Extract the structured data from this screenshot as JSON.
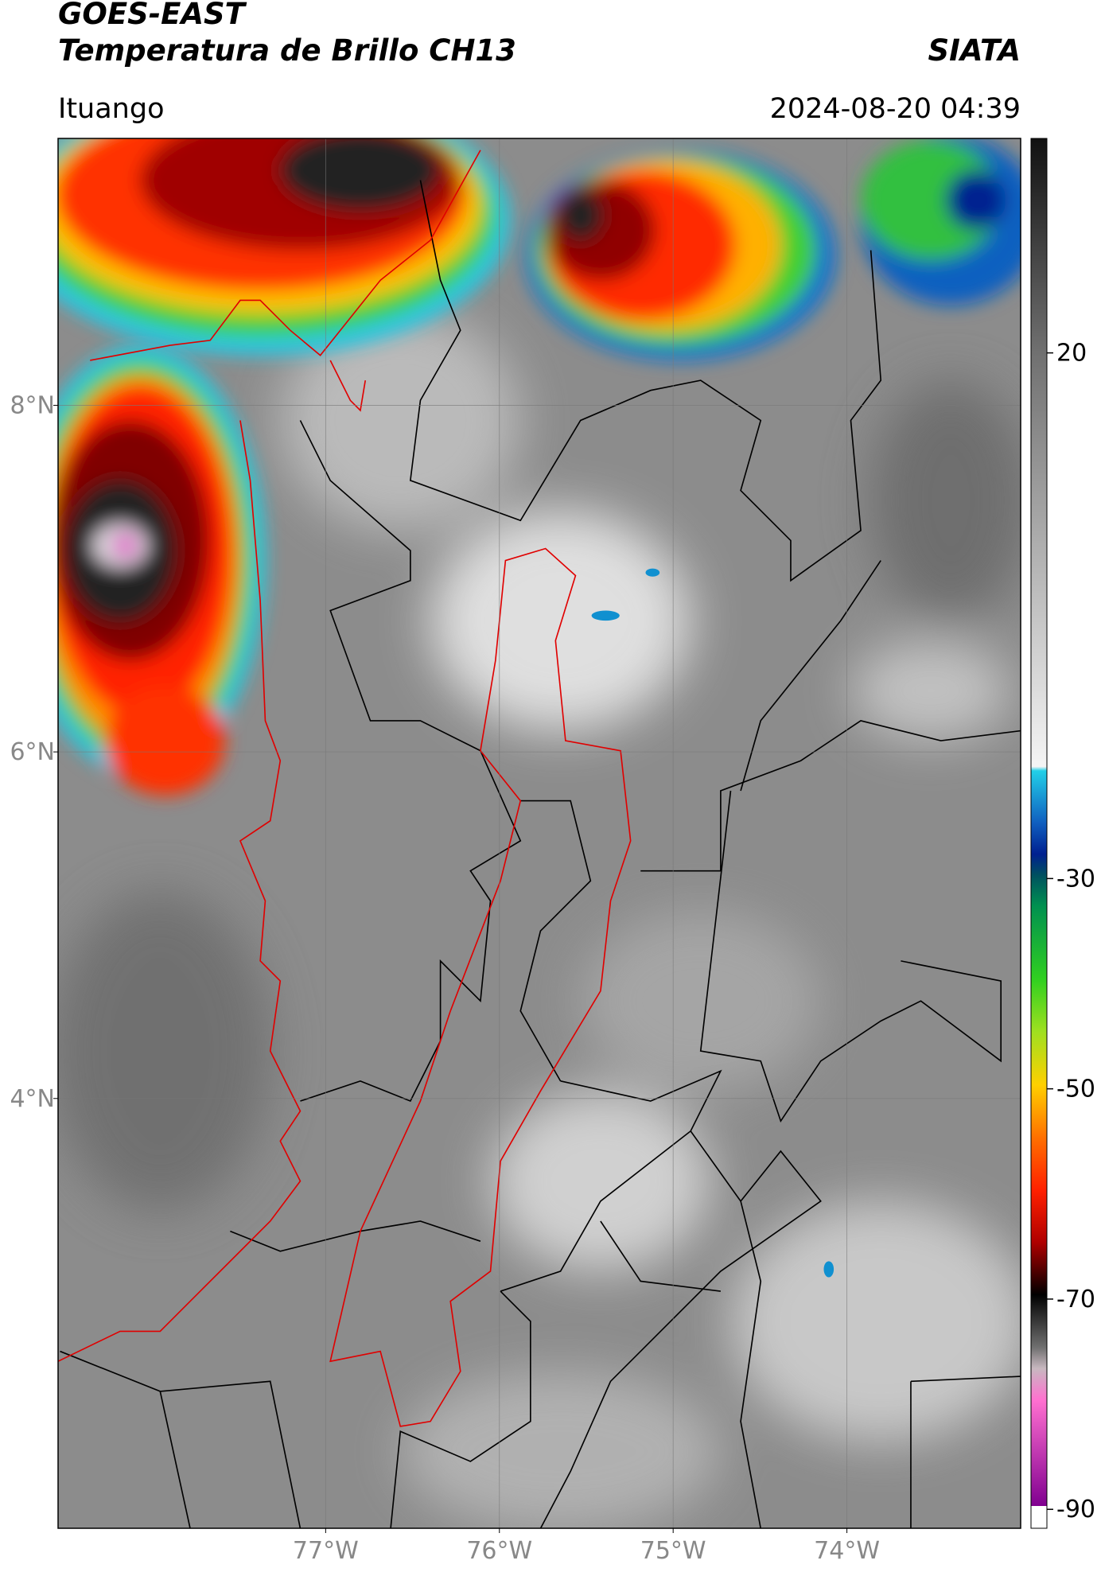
{
  "header": {
    "satellite": "GOES-EAST",
    "product": "Temperatura de Brillo CH13",
    "agency": "SIATA",
    "region": "Ituango",
    "timestamp": "2024-08-20 04:39"
  },
  "map": {
    "xlim": [
      -78.54,
      -73.0
    ],
    "ylim": [
      1.52,
      9.54
    ],
    "xticks": [
      {
        "value": -77,
        "label": "77°W"
      },
      {
        "value": -76,
        "label": "76°W"
      },
      {
        "value": -75,
        "label": "75°W"
      },
      {
        "value": -74,
        "label": "74°W"
      }
    ],
    "yticks": [
      {
        "value": 8,
        "label": "8°N"
      },
      {
        "value": 6,
        "label": "6°N"
      },
      {
        "value": 4,
        "label": "4°N"
      }
    ],
    "grid": true
  },
  "colorbar": {
    "clim": [
      -91.8,
      40.4
    ],
    "ticks": [
      20,
      -30,
      -50,
      -70,
      -90
    ]
  }
}
